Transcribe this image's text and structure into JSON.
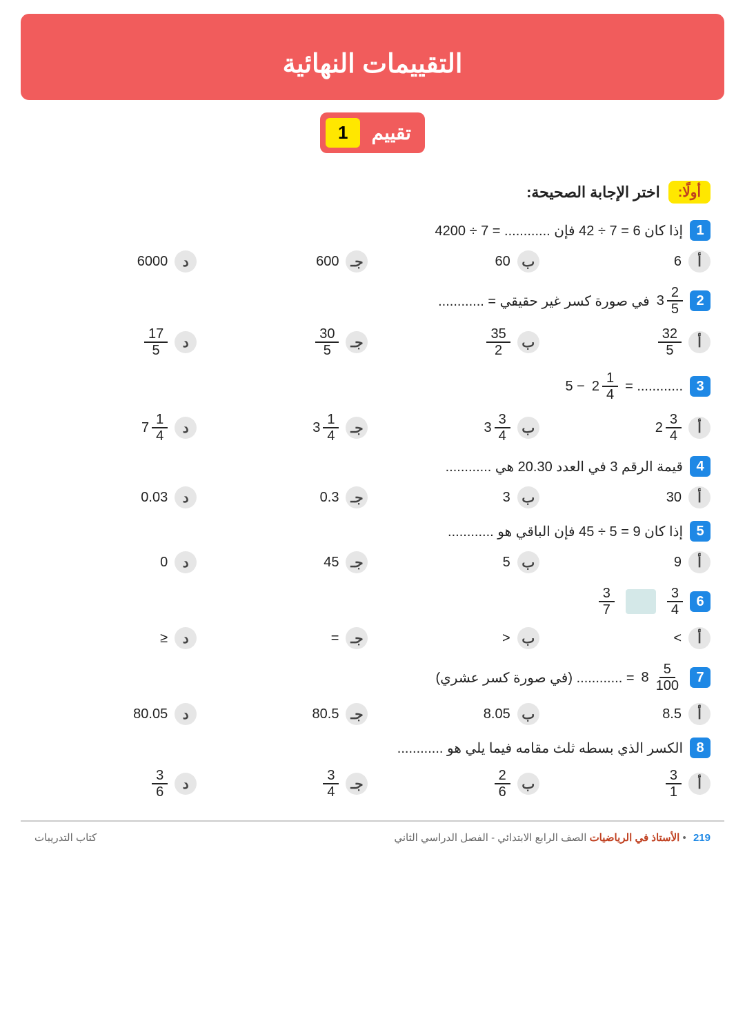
{
  "header": {
    "title": "التقييمات النهائية"
  },
  "sub": {
    "word": "تقييم",
    "num": "1"
  },
  "section": {
    "tag": "أولًا:",
    "text": "اختر الإجابة الصحيحة:"
  },
  "opt_labels": {
    "a": "أ",
    "b": "ب",
    "c": "جـ",
    "d": "د"
  },
  "q1": {
    "num": "1",
    "text": "إذا كان 6 = 7 ÷ 42 فإن ............ = 7 ÷ 4200",
    "a": "6",
    "b": "60",
    "c": "600",
    "d": "6000"
  },
  "q2": {
    "num": "2",
    "pre_whole": "3",
    "pre_n": "2",
    "pre_d": "5",
    "rest": " في صورة كسر غير حقيقي = ............",
    "a_n": "32",
    "a_d": "5",
    "b_n": "35",
    "b_d": "2",
    "c_n": "30",
    "c_d": "5",
    "d_n": "17",
    "d_d": "5"
  },
  "q3": {
    "num": "3",
    "lead": " ............ = ",
    "mix_w": "2",
    "mix_n": "1",
    "mix_d": "4",
    "minus": " − 5",
    "a_w": "2",
    "a_n": "3",
    "a_d": "4",
    "b_w": "3",
    "b_n": "3",
    "b_d": "4",
    "c_w": "3",
    "c_n": "1",
    "c_d": "4",
    "d_w": "7",
    "d_n": "1",
    "d_d": "4"
  },
  "q4": {
    "num": "4",
    "text": "قيمة الرقم 3 في العدد 20.30 هي ............",
    "a": "30",
    "b": "3",
    "c": "0.3",
    "d": "0.03"
  },
  "q5": {
    "num": "5",
    "text": "إذا كان 9 = 5 ÷ 45 فإن الباقي هو ............",
    "a": "9",
    "b": "5",
    "c": "45",
    "d": "0"
  },
  "q6": {
    "num": "6",
    "left_n": "3",
    "left_d": "4",
    "right_n": "3",
    "right_d": "7",
    "a": ">",
    "b": "<",
    "c": "=",
    "d": "≤"
  },
  "q7": {
    "num": "7",
    "whole": "8",
    "fn": "5",
    "fd": "100",
    "rest": " = ............ (في صورة كسر عشري)",
    "a": "8.5",
    "b": "8.05",
    "c": "80.5",
    "d": "80.05"
  },
  "q8": {
    "num": "8",
    "text": "الكسر الذي بسطه ثلث مقامه فيما يلي هو ............",
    "a_n": "3",
    "a_d": "1",
    "b_n": "2",
    "b_d": "6",
    "c_n": "3",
    "c_d": "4",
    "d_n": "3",
    "d_d": "6"
  },
  "footer": {
    "page": "219",
    "bullet": "•",
    "brand": "الأستاذ في الرياضيات",
    "grade": "الصف الرابع الابتدائي - الفصل الدراسي الثاني",
    "book": "كتاب التدريبات"
  }
}
